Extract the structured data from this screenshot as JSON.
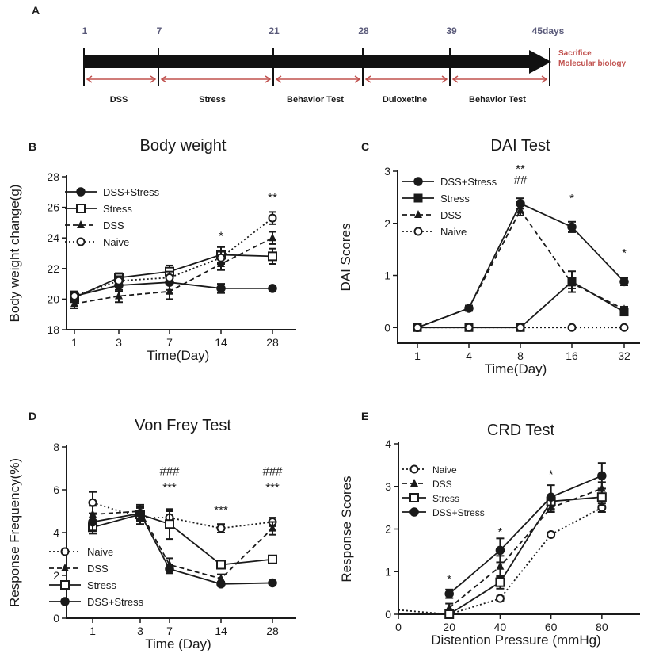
{
  "colors": {
    "ink": "#1a1a1a",
    "accent_red": "#c0504d",
    "day_label": "#5a5a7a"
  },
  "timeline": {
    "panel_label": "A",
    "days": [
      "1",
      "7",
      "21",
      "28",
      "39",
      "45days"
    ],
    "phases": [
      "DSS",
      "Stress",
      "Behavior Test",
      "Duloxetine",
      "Behavior Test"
    ],
    "end_note": [
      "Sacrifice",
      "Molecular biology"
    ]
  },
  "chart_data": [
    {
      "panel": "B",
      "type": "line",
      "title": "Body weight",
      "xlabel": "Time(Day)",
      "ylabel": "Body weight change(g)",
      "categories": [
        "1",
        "3",
        "7",
        "14",
        "28"
      ],
      "ylim": [
        18,
        28
      ],
      "yticks": [
        "18",
        "20",
        "22",
        "24",
        "26",
        "28"
      ],
      "legend_position": "top-left",
      "series": [
        {
          "name": "DSS+Stress",
          "marker": "filled-circle",
          "line": "solid",
          "values": [
            20.2,
            20.9,
            21.1,
            20.7,
            20.7
          ],
          "errors": [
            0.3,
            0.4,
            0.5,
            0.3,
            0.2
          ]
        },
        {
          "name": "Stress",
          "marker": "open-square",
          "line": "solid",
          "values": [
            20.1,
            21.4,
            21.8,
            22.9,
            22.8
          ],
          "errors": [
            0.3,
            0.3,
            0.4,
            0.5,
            0.5
          ]
        },
        {
          "name": "DSS",
          "marker": "filled-triangle",
          "line": "dashed",
          "values": [
            19.7,
            20.2,
            20.5,
            22.3,
            24.0
          ],
          "errors": [
            0.3,
            0.4,
            0.5,
            0.4,
            0.4
          ]
        },
        {
          "name": "Naive",
          "marker": "open-circle",
          "line": "dotted",
          "values": [
            20.2,
            21.2,
            21.4,
            22.7,
            25.3
          ],
          "errors": [
            0.3,
            0.3,
            0.4,
            0.4,
            0.4
          ]
        }
      ],
      "annotations": [
        {
          "category": "14",
          "value": 24.2,
          "text": "*"
        },
        {
          "category": "28",
          "value": 26.7,
          "text": "**"
        }
      ]
    },
    {
      "panel": "C",
      "type": "line",
      "title": "DAI Test",
      "xlabel": "Time(Day)",
      "ylabel": "DAI Scores",
      "categories": [
        "1",
        "4",
        "8",
        "16",
        "32"
      ],
      "ylim": [
        -0.3,
        3
      ],
      "yticks": [
        "0",
        "1",
        "2",
        "3"
      ],
      "legend_position": "top-left",
      "series": [
        {
          "name": "DSS+Stress",
          "marker": "filled-circle",
          "line": "solid",
          "values": [
            0,
            0.37,
            2.38,
            1.93,
            0.88
          ],
          "errors": [
            0,
            0.05,
            0.1,
            0.1,
            0.07
          ]
        },
        {
          "name": "Stress",
          "marker": "filled-square",
          "line": "solid",
          "values": [
            0,
            0,
            0,
            0.88,
            0.3
          ],
          "errors": [
            0,
            0,
            0,
            0.2,
            0.05
          ]
        },
        {
          "name": "DSS",
          "marker": "filled-triangle",
          "line": "dashed",
          "values": [
            0,
            0.37,
            2.25,
            0.85,
            0.35
          ],
          "errors": [
            0,
            0.05,
            0.1,
            0.1,
            0.05
          ]
        },
        {
          "name": "Naive",
          "marker": "open-circle",
          "line": "dotted",
          "values": [
            0,
            0,
            0,
            0,
            0
          ],
          "errors": [
            0,
            0,
            0,
            0,
            0
          ]
        }
      ],
      "annotations": [
        {
          "category": "8",
          "value": 2.85,
          "text": "##"
        },
        {
          "category": "8",
          "value": 3.06,
          "text": "**"
        },
        {
          "category": "16",
          "value": 2.5,
          "text": "*"
        },
        {
          "category": "32",
          "value": 1.45,
          "text": "*"
        }
      ]
    },
    {
      "panel": "D",
      "type": "line",
      "title": "Von Frey Test",
      "xlabel": "Time (Day)",
      "ylabel": "Response Frequency(%)",
      "categories": [
        "1",
        "3",
        "7",
        "14",
        "28"
      ],
      "ylim": [
        0,
        8
      ],
      "yticks": [
        "0",
        "2",
        "4",
        "6",
        "8"
      ],
      "legend_position": "bottom-left",
      "series": [
        {
          "name": "Naive",
          "marker": "open-circle",
          "line": "dotted",
          "values": [
            5.4,
            4.7,
            4.7,
            4.2,
            4.5
          ],
          "errors": [
            0.5,
            0.3,
            0.3,
            0.2,
            0.2
          ]
        },
        {
          "name": "DSS",
          "marker": "filled-triangle",
          "line": "dashed",
          "values": [
            4.85,
            5.0,
            2.5,
            1.85,
            4.2
          ],
          "errors": [
            0.4,
            0.3,
            0.3,
            0.2,
            0.3
          ]
        },
        {
          "name": "Stress",
          "marker": "open-square",
          "line": "solid",
          "values": [
            4.25,
            4.85,
            4.4,
            2.5,
            2.75
          ],
          "errors": [
            0.3,
            0.3,
            0.7,
            0.15,
            0.1
          ]
        },
        {
          "name": "DSS+Stress",
          "marker": "filled-circle",
          "line": "solid",
          "values": [
            4.5,
            4.9,
            2.3,
            1.6,
            1.65
          ],
          "errors": [
            0.4,
            0.3,
            0.2,
            0.1,
            0.1
          ]
        }
      ],
      "annotations": [
        {
          "category": "7",
          "value": 6.9,
          "text": "###"
        },
        {
          "category": "7",
          "value": 6.15,
          "text": "***"
        },
        {
          "category": "14",
          "value": 5.1,
          "text": "***"
        },
        {
          "category": "28",
          "value": 6.9,
          "text": "###"
        },
        {
          "category": "28",
          "value": 6.15,
          "text": "***"
        }
      ]
    },
    {
      "panel": "E",
      "type": "line",
      "title": "CRD Test",
      "xlabel": "Distention Pressure (mmHg)",
      "ylabel": "Response  Scores",
      "x_numeric": true,
      "x": [
        20,
        40,
        60,
        80
      ],
      "xlim": [
        0,
        95
      ],
      "xticks": [
        "0",
        "20",
        "40",
        "60",
        "80"
      ],
      "ylim": [
        0,
        4
      ],
      "yticks": [
        "0",
        "1",
        "2",
        "3",
        "4"
      ],
      "legend_position": "top-left",
      "series": [
        {
          "name": "Naive",
          "marker": "open-circle",
          "line": "dotted",
          "values": [
            0,
            0.37,
            1.87,
            2.5
          ],
          "errors": [
            0,
            0.05,
            0.05,
            0.1
          ],
          "lead_in_from": 0,
          "lead_in_value": 0.1
        },
        {
          "name": "DSS",
          "marker": "filled-triangle",
          "line": "dashed",
          "values": [
            0.15,
            1.12,
            2.5,
            2.95
          ],
          "errors": [
            0.1,
            0.25,
            0.1,
            0.15
          ]
        },
        {
          "name": "Stress",
          "marker": "open-square",
          "line": "solid",
          "values": [
            0,
            0.75,
            2.65,
            2.75
          ],
          "errors": [
            0.05,
            0.15,
            0.1,
            0.2
          ]
        },
        {
          "name": "DSS+Stress",
          "marker": "filled-circle",
          "line": "solid",
          "values": [
            0.48,
            1.5,
            2.75,
            3.25
          ],
          "errors": [
            0.1,
            0.28,
            0.28,
            0.3
          ]
        }
      ],
      "annotations": [
        {
          "x": 20,
          "value": 0.85,
          "text": "*"
        },
        {
          "x": 40,
          "value": 1.95,
          "text": "*"
        },
        {
          "x": 60,
          "value": 3.3,
          "text": "*"
        }
      ]
    }
  ]
}
